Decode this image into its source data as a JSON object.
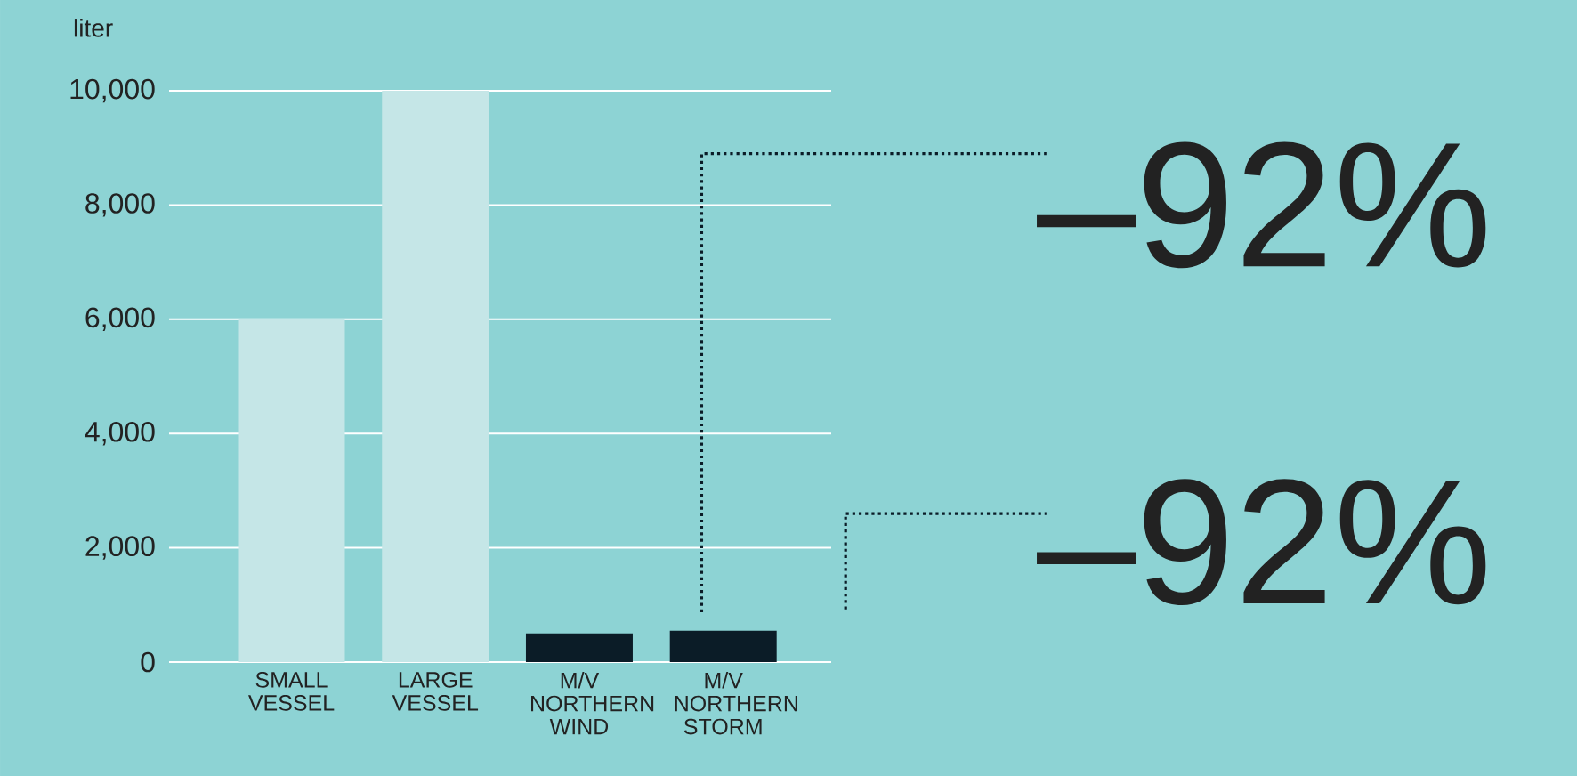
{
  "chart_data": {
    "type": "bar",
    "ylabel": "liter",
    "categories": [
      "SMALL VESSEL",
      "LARGE VESSEL",
      "M/V NORTHERN WIND",
      "M/V NORTHERN STORM"
    ],
    "values": [
      6000,
      10000,
      500,
      550
    ],
    "colors": [
      "#c5e6e7",
      "#c5e6e7",
      "#0b1c27",
      "#0b1c27"
    ],
    "ylim": [
      0,
      10000
    ],
    "yticks": [
      0,
      {
        "value": 2000,
        "label": "2,000"
      },
      {
        "value": 4000,
        "label": "4,000"
      },
      {
        "value": 6000,
        "label": "6,000"
      },
      {
        "value": 8000,
        "label": "8,000"
      },
      {
        "value": 10000,
        "label": "10,000"
      }
    ],
    "grid": "y",
    "annotations": [
      "–92%",
      "–92%"
    ]
  }
}
